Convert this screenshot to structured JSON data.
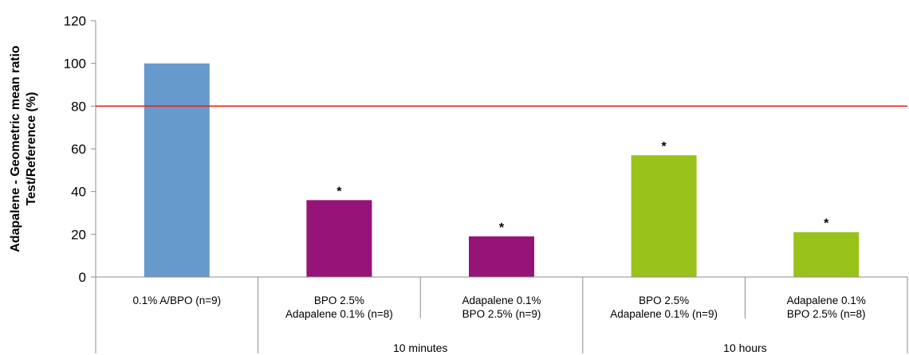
{
  "chart_data": {
    "type": "bar",
    "ylabel_lines": [
      "Adapalene  - Geometric mean ratio",
      "Test/Reference (%)"
    ],
    "ylim": [
      0,
      120
    ],
    "yticks": [
      0,
      20,
      40,
      60,
      80,
      100,
      120
    ],
    "reference_line": {
      "value": 80,
      "color": "#e8241c"
    },
    "categories": [
      {
        "lines": [
          "0.1% A/BPO (n=9)"
        ],
        "value": 100,
        "color": "#6699cc",
        "marker": ""
      },
      {
        "lines": [
          "BPO 2.5%",
          "Adapalene 0.1% (n=8)"
        ],
        "value": 36,
        "color": "#961478",
        "marker": "*"
      },
      {
        "lines": [
          "Adapalene 0.1%",
          "BPO 2.5% (n=9)"
        ],
        "value": 19,
        "color": "#961478",
        "marker": "*"
      },
      {
        "lines": [
          "BPO 2.5%",
          "Adapalene 0.1% (n=9)"
        ],
        "value": 57,
        "color": "#99c31a",
        "marker": "*"
      },
      {
        "lines": [
          "Adapalene 0.1%",
          "BPO 2.5% (n=8)"
        ],
        "value": 21,
        "color": "#99c31a",
        "marker": "*"
      }
    ],
    "groups": [
      {
        "label": "",
        "span": [
          0,
          0
        ]
      },
      {
        "label": "10 minutes",
        "span": [
          1,
          2
        ]
      },
      {
        "label": "10 hours",
        "span": [
          3,
          4
        ]
      }
    ]
  }
}
